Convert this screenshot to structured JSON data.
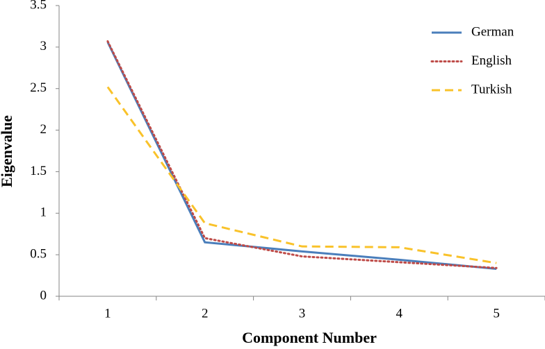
{
  "chart_data": {
    "type": "line",
    "x_label": "Component Number",
    "y_label": "Eigenvalue",
    "categories": [
      "1",
      "2",
      "3",
      "4",
      "5"
    ],
    "series": [
      {
        "name": "German",
        "color": "#4a7ebb",
        "dash": "solid",
        "values": [
          3.06,
          0.65,
          0.54,
          0.44,
          0.33
        ]
      },
      {
        "name": "English",
        "color": "#be4b48",
        "dash": "dotted",
        "values": [
          3.07,
          0.7,
          0.48,
          0.41,
          0.34
        ]
      },
      {
        "name": "Turkish",
        "color": "#f9c22a",
        "dash": "dashed",
        "values": [
          2.52,
          0.88,
          0.6,
          0.59,
          0.4
        ]
      }
    ],
    "ylim": [
      0,
      3.5
    ],
    "yticks": [
      0,
      0.5,
      1,
      1.5,
      2,
      2.5,
      3,
      3.5
    ],
    "grid": false,
    "legend": "upper right"
  }
}
